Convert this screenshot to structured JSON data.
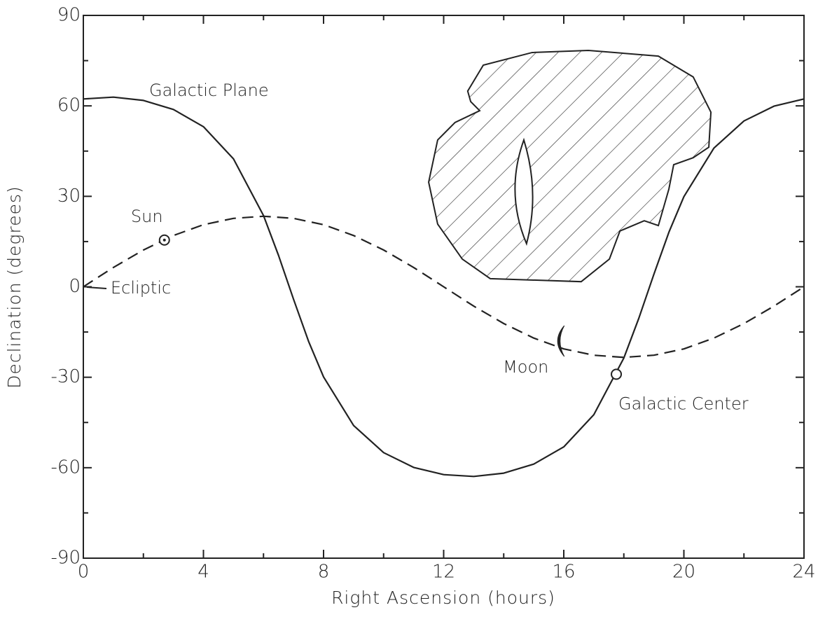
{
  "chart_data": {
    "type": "line",
    "xlabel": "Right Ascension  (hours)",
    "ylabel": "Declination (degrees)",
    "xlim": [
      0,
      24
    ],
    "ylim": [
      -90,
      90
    ],
    "xticks": [
      0,
      4,
      8,
      12,
      16,
      20,
      24
    ],
    "yticks": [
      -90,
      -60,
      -30,
      0,
      30,
      60,
      90
    ],
    "xminorticks": [
      2,
      6,
      10,
      14,
      18,
      22
    ],
    "yminorticks": [
      -75,
      -45,
      -15,
      15,
      45,
      75
    ],
    "color": "#222222",
    "series": [
      {
        "name": "Galactic Plane",
        "dashed": false,
        "x": [
          0,
          1,
          2,
          3,
          4,
          5,
          6,
          6.5,
          7,
          7.5,
          8,
          9,
          10,
          11,
          12,
          13,
          14,
          15,
          16,
          17,
          18,
          18.5,
          19,
          19.5,
          20,
          21,
          22,
          23,
          24
        ],
        "values": [
          62.3,
          62.9,
          61.8,
          58.8,
          53.1,
          42.4,
          23.6,
          10.4,
          -4.1,
          -18.1,
          -29.9,
          -46.0,
          -55.0,
          -59.9,
          -62.3,
          -62.9,
          -61.8,
          -58.8,
          -53.1,
          -42.4,
          -23.6,
          -10.4,
          4.1,
          18.1,
          29.9,
          46.0,
          55.0,
          59.9,
          62.3
        ]
      },
      {
        "name": "Ecliptic",
        "dashed": true,
        "x": [
          0,
          1,
          2,
          3,
          4,
          5,
          6,
          7,
          8,
          9,
          10,
          11,
          12,
          13,
          14,
          15,
          16,
          17,
          18,
          19,
          20,
          21,
          22,
          23,
          24
        ],
        "values": [
          0,
          6.4,
          12.2,
          17.0,
          20.6,
          22.7,
          23.4,
          22.7,
          20.6,
          17.0,
          12.2,
          6.4,
          0,
          -6.4,
          -12.2,
          -17.0,
          -20.6,
          -22.7,
          -23.4,
          -22.7,
          -20.6,
          -17.0,
          -12.2,
          -6.4,
          0
        ]
      }
    ],
    "points": [
      {
        "name": "Sun",
        "x": 2.7,
        "y": 15.5
      },
      {
        "name": "Moon",
        "x": 15.9,
        "y": -18
      },
      {
        "name": "Galactic Center",
        "x": 17.75,
        "y": -29
      }
    ],
    "region": {
      "x": [
        12.8,
        13.32,
        14.95,
        16.82,
        19.15,
        20.31,
        20.9,
        20.83,
        20.31,
        19.66,
        19.5,
        19.15,
        18.68,
        17.87,
        17.52,
        16.58,
        13.55,
        12.62,
        11.8,
        11.5,
        11.8,
        12.38,
        13.2,
        12.9
      ],
      "y": [
        64.9,
        73.5,
        77.7,
        78.4,
        76.5,
        69.6,
        57.9,
        46.3,
        42.8,
        40.5,
        32.4,
        20.3,
        21.9,
        18.5,
        9.2,
        1.7,
        2.7,
        9.2,
        20.8,
        34.7,
        48.7,
        54.5,
        58.4,
        61.4
      ]
    },
    "hole": {
      "x": [
        14.67,
        15.07,
        14.76,
        14.18
      ],
      "y": [
        48.7,
        31.2,
        14.3,
        31.2
      ]
    }
  }
}
